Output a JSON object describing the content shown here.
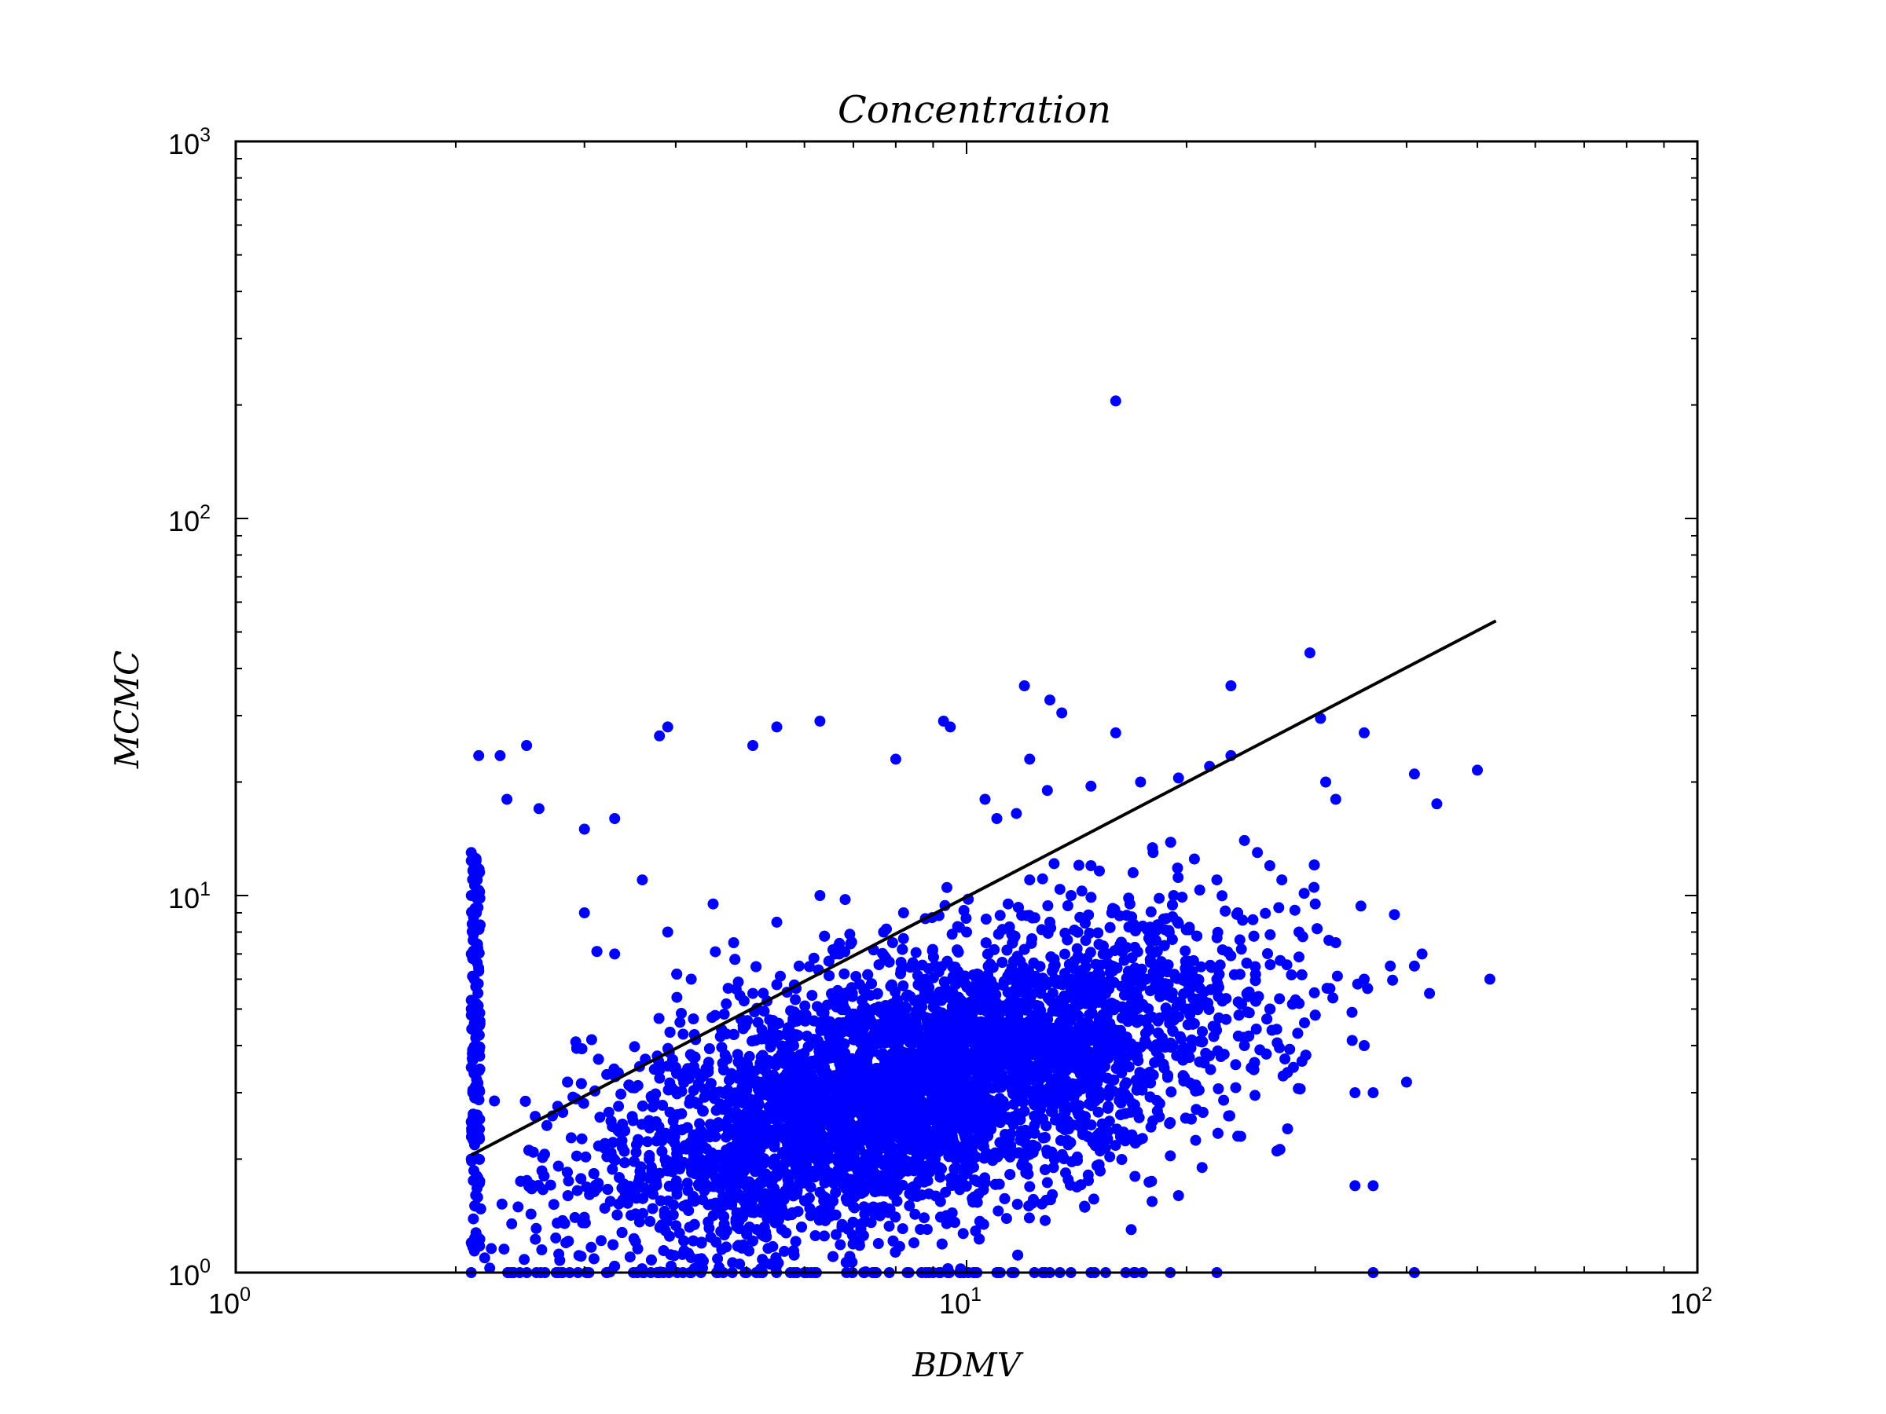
{
  "chart_data": {
    "type": "scatter",
    "title": "Concentration",
    "xlabel": "BDMV",
    "ylabel": "MCMC",
    "xscale": "log",
    "yscale": "log",
    "xlim": [
      1,
      100
    ],
    "ylim": [
      1,
      1000
    ],
    "x_ticks": [
      {
        "base": "10",
        "exp": "0"
      },
      {
        "base": "10",
        "exp": "1"
      },
      {
        "base": "10",
        "exp": "2"
      }
    ],
    "y_ticks": [
      {
        "base": "10",
        "exp": "0"
      },
      {
        "base": "10",
        "exp": "1"
      },
      {
        "base": "10",
        "exp": "2"
      },
      {
        "base": "10",
        "exp": "3"
      }
    ],
    "grid": false,
    "colors": {
      "points": "#0000ff",
      "fit_line": "#000000",
      "axes": "#000000"
    },
    "series": [
      {
        "type": "scatter",
        "points": [
          [
            16.0,
            205
          ],
          [
            29.5,
            44
          ],
          [
            23.0,
            36
          ],
          [
            12.0,
            36
          ],
          [
            13.0,
            33
          ],
          [
            13.5,
            30.5
          ],
          [
            30.5,
            29.5
          ],
          [
            6.3,
            29
          ],
          [
            9.3,
            29
          ],
          [
            9.5,
            28
          ],
          [
            5.5,
            28
          ],
          [
            16.0,
            27
          ],
          [
            3.9,
            28
          ],
          [
            3.8,
            26.5
          ],
          [
            2.5,
            25
          ],
          [
            2.3,
            23.5
          ],
          [
            2.15,
            23.5
          ],
          [
            35,
            27
          ],
          [
            23,
            23.5
          ],
          [
            50,
            21.5
          ],
          [
            41,
            21
          ],
          [
            31,
            20
          ],
          [
            32,
            18
          ],
          [
            44,
            17.5
          ],
          [
            2.35,
            18
          ],
          [
            2.6,
            17
          ],
          [
            3.0,
            15
          ],
          [
            3.3,
            16
          ],
          [
            8.0,
            23
          ],
          [
            12.2,
            23
          ],
          [
            5.1,
            25
          ],
          [
            10.6,
            18
          ],
          [
            11.0,
            16
          ],
          [
            11.7,
            16.5
          ],
          [
            12.9,
            19
          ],
          [
            14.8,
            19.5
          ],
          [
            17.3,
            20
          ],
          [
            19.5,
            20.5
          ],
          [
            21.5,
            22
          ],
          [
            52,
            6
          ],
          [
            42,
            7
          ],
          [
            41,
            6.5
          ],
          [
            43,
            5.5
          ],
          [
            38,
            6.5
          ],
          [
            35,
            6
          ],
          [
            40,
            3.2
          ],
          [
            35,
            4
          ],
          [
            36,
            3
          ],
          [
            34,
            3
          ],
          [
            36,
            1.7
          ],
          [
            34,
            1.7
          ],
          [
            36,
            1
          ],
          [
            41,
            1
          ],
          [
            2.1,
            13
          ],
          [
            2.12,
            12
          ],
          [
            2.14,
            11
          ],
          [
            2.1,
            10
          ],
          [
            2.13,
            9
          ],
          [
            2.11,
            8
          ],
          [
            2.1,
            7
          ],
          [
            2.12,
            6
          ],
          [
            2.1,
            5
          ],
          [
            2.13,
            4
          ],
          [
            2.1,
            3.5
          ],
          [
            2.11,
            3
          ],
          [
            2.12,
            2.5
          ],
          [
            2.1,
            2
          ],
          [
            2.13,
            1.5
          ],
          [
            2.1,
            1.2
          ],
          [
            2.1,
            1
          ],
          [
            2.4,
            1
          ],
          [
            2.8,
            1
          ],
          [
            3.5,
            1
          ],
          [
            4.2,
            1
          ],
          [
            5.0,
            1
          ],
          [
            6.0,
            1
          ],
          [
            7.5,
            1
          ],
          [
            9.0,
            1
          ],
          [
            11.0,
            1
          ],
          [
            13.0,
            1
          ],
          [
            15.5,
            1
          ],
          [
            19,
            1
          ],
          [
            22,
            1
          ],
          [
            3.0,
            9
          ],
          [
            3.3,
            7
          ],
          [
            3.6,
            11
          ],
          [
            3.9,
            8
          ],
          [
            4.2,
            6
          ],
          [
            4.5,
            9.5
          ],
          [
            4.8,
            7.5
          ],
          [
            5.1,
            5.5
          ],
          [
            5.5,
            8.5
          ],
          [
            5.9,
            6.5
          ],
          [
            6.3,
            10
          ],
          [
            6.7,
            7
          ],
          [
            7.2,
            5
          ],
          [
            7.7,
            8
          ],
          [
            8.2,
            9
          ],
          [
            8.8,
            6
          ],
          [
            9.4,
            10.5
          ],
          [
            10,
            8
          ],
          [
            10.7,
            7
          ],
          [
            11.4,
            9.5
          ],
          [
            12.2,
            11
          ],
          [
            13,
            8.5
          ],
          [
            13.9,
            10
          ],
          [
            14.8,
            12
          ],
          [
            15.8,
            9
          ],
          [
            16.9,
            11.5
          ],
          [
            18,
            13
          ],
          [
            19.2,
            10
          ],
          [
            20.5,
            12.5
          ],
          [
            22,
            11
          ],
          [
            23.5,
            9
          ],
          [
            25,
            13
          ],
          [
            27,
            11
          ],
          [
            28.5,
            8
          ],
          [
            30,
            9.5
          ],
          [
            32,
            7.5
          ],
          [
            26,
            12
          ],
          [
            24,
            14
          ],
          [
            4.0,
            3.5
          ],
          [
            4.6,
            2.8
          ],
          [
            5.2,
            3.2
          ],
          [
            5.8,
            4
          ],
          [
            6.4,
            2.5
          ],
          [
            7.0,
            3.5
          ],
          [
            7.8,
            4.5
          ],
          [
            8.5,
            3
          ],
          [
            9.3,
            4.2
          ],
          [
            10.2,
            5
          ],
          [
            11.1,
            3.8
          ],
          [
            12.1,
            5.5
          ],
          [
            13.2,
            6
          ],
          [
            14.4,
            4.5
          ],
          [
            15.6,
            7
          ],
          [
            17,
            5.5
          ],
          [
            18.5,
            6.5
          ],
          [
            20,
            5
          ],
          [
            22,
            6
          ],
          [
            24,
            4
          ],
          [
            26,
            5
          ],
          [
            28,
            3.5
          ],
          [
            3.2,
            2.2
          ],
          [
            3.6,
            1.8
          ],
          [
            4.1,
            1.5
          ],
          [
            4.7,
            2
          ],
          [
            5.3,
            1.6
          ],
          [
            6.0,
            2.3
          ],
          [
            6.8,
            1.8
          ],
          [
            7.6,
            2.6
          ],
          [
            8.5,
            2.1
          ],
          [
            9.6,
            2.8
          ],
          [
            10.8,
            2.4
          ],
          [
            12.1,
            1.9
          ],
          [
            13.6,
            2.7
          ],
          [
            15.2,
            2.2
          ],
          [
            17,
            1.8
          ],
          [
            19,
            2.5
          ],
          [
            21,
            1.9
          ],
          [
            23.5,
            2.3
          ],
          [
            14.5,
            1.5
          ],
          [
            16.8,
            1.3
          ],
          [
            19.5,
            1.6
          ]
        ],
        "note_dense_cloud": "thousands of additional points concentrated around x 4–25, y 3–15"
      },
      {
        "type": "line",
        "points": [
          [
            2.1,
            2.05
          ],
          [
            53,
            53.5
          ]
        ]
      }
    ]
  }
}
